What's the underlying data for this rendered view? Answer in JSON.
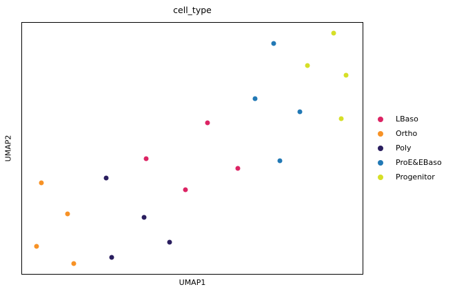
{
  "figure": {
    "title": "cell_type",
    "xlabel": "UMAP1",
    "ylabel": "UMAP2",
    "background_color": "#ffffff",
    "spine_color": "#000000"
  },
  "chart_data": {
    "type": "scatter",
    "title": "cell_type",
    "xlabel": "UMAP1",
    "ylabel": "UMAP2",
    "axes_note": "no tick marks or tick labels shown; point coordinates given as fractions of axes extent (x rightward, y upward, range 0-1)",
    "grid": false,
    "legend_position": "right-outside",
    "marker_diameter_px": 7,
    "series": [
      {
        "name": "LBaso",
        "color": "#DC2464",
        "points": [
          {
            "x": 0.544,
            "y": 0.601
          },
          {
            "x": 0.365,
            "y": 0.459
          },
          {
            "x": 0.633,
            "y": 0.421
          },
          {
            "x": 0.48,
            "y": 0.336
          }
        ]
      },
      {
        "name": "Ortho",
        "color": "#F79226",
        "points": [
          {
            "x": 0.056,
            "y": 0.363
          },
          {
            "x": 0.133,
            "y": 0.238
          },
          {
            "x": 0.042,
            "y": 0.109
          },
          {
            "x": 0.151,
            "y": 0.041
          }
        ]
      },
      {
        "name": "Poly",
        "color": "#2A1E5F",
        "points": [
          {
            "x": 0.246,
            "y": 0.383
          },
          {
            "x": 0.359,
            "y": 0.224
          },
          {
            "x": 0.433,
            "y": 0.126
          },
          {
            "x": 0.264,
            "y": 0.066
          }
        ]
      },
      {
        "name": "ProE&EBaso",
        "color": "#2279B5",
        "points": [
          {
            "x": 0.738,
            "y": 0.918
          },
          {
            "x": 0.685,
            "y": 0.697
          },
          {
            "x": 0.815,
            "y": 0.645
          },
          {
            "x": 0.758,
            "y": 0.451
          }
        ]
      },
      {
        "name": "Progenitor",
        "color": "#D6DF27",
        "points": [
          {
            "x": 0.915,
            "y": 0.959
          },
          {
            "x": 0.839,
            "y": 0.831
          },
          {
            "x": 0.952,
            "y": 0.79
          },
          {
            "x": 0.938,
            "y": 0.618
          }
        ]
      }
    ]
  }
}
